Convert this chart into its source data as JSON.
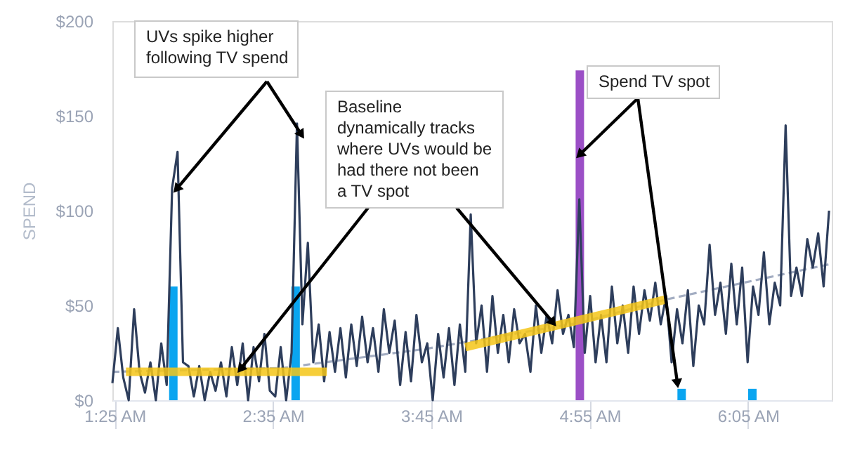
{
  "chart_data": {
    "type": "line",
    "ylabel": "SPEND",
    "xlim": [
      1.4,
      6.7
    ],
    "ylim": [
      0,
      200
    ],
    "xticks": [
      {
        "value": 1.4167,
        "label": "1:25 AM"
      },
      {
        "value": 2.5833,
        "label": "2:35 AM"
      },
      {
        "value": 3.75,
        "label": "3:45 AM"
      },
      {
        "value": 4.9167,
        "label": "4:55 AM"
      },
      {
        "value": 6.0833,
        "label": "6:05 AM"
      }
    ],
    "yticks": [
      {
        "value": 0,
        "label": "$0"
      },
      {
        "value": 50,
        "label": "$50"
      },
      {
        "value": 100,
        "label": "$100"
      },
      {
        "value": 150,
        "label": "$150"
      },
      {
        "value": 200,
        "label": "$200"
      }
    ],
    "grid": false,
    "series": [
      {
        "line_style": "dashed",
        "color": "#a3adc2",
        "x": [
          1.4,
          2.65,
          3.7,
          4.85,
          5.47,
          6.7
        ],
        "values": [
          15,
          17,
          27,
          41,
          53,
          72
        ]
      },
      {
        "type": "bar",
        "x": [
          1.849,
          2.75,
          4.844,
          5.594,
          6.115
        ],
        "values": [
          60,
          60,
          174,
          6,
          6
        ],
        "colors": [
          "#0aa5f0",
          "#0aa5f0",
          "#9b4fc6",
          "#0aa5f0",
          "#0aa5f0"
        ]
      },
      {
        "line_style": "solid",
        "color": "#2e3e5c",
        "x": [
          1.4,
          1.44,
          1.48,
          1.52,
          1.56,
          1.6,
          1.64,
          1.68,
          1.72,
          1.76,
          1.8,
          1.84,
          1.88,
          1.92,
          1.96,
          2.0,
          2.04,
          2.08,
          2.12,
          2.16,
          2.2,
          2.24,
          2.28,
          2.32,
          2.36,
          2.4,
          2.44,
          2.48,
          2.52,
          2.56,
          2.6,
          2.64,
          2.68,
          2.72,
          2.76,
          2.8,
          2.84,
          2.88,
          2.92,
          2.96,
          3.0,
          3.04,
          3.08,
          3.12,
          3.16,
          3.2,
          3.24,
          3.28,
          3.32,
          3.36,
          3.4,
          3.44,
          3.48,
          3.52,
          3.56,
          3.6,
          3.64,
          3.68,
          3.72,
          3.76,
          3.8,
          3.84,
          3.88,
          3.92,
          3.96,
          4.0,
          4.04,
          4.08,
          4.12,
          4.16,
          4.2,
          4.24,
          4.28,
          4.32,
          4.36,
          4.4,
          4.44,
          4.48,
          4.52,
          4.56,
          4.6,
          4.64,
          4.68,
          4.72,
          4.76,
          4.8,
          4.84,
          4.88,
          4.92,
          4.96,
          5.0,
          5.04,
          5.08,
          5.12,
          5.16,
          5.2,
          5.24,
          5.28,
          5.32,
          5.36,
          5.4,
          5.44,
          5.48,
          5.52,
          5.56,
          5.6,
          5.64,
          5.68,
          5.72,
          5.76,
          5.8,
          5.84,
          5.88,
          5.92,
          5.96,
          6.0,
          6.04,
          6.08,
          6.12,
          6.16,
          6.2,
          6.24,
          6.28,
          6.32,
          6.36,
          6.4,
          6.44,
          6.48,
          6.52,
          6.56,
          6.6,
          6.64,
          6.68
        ],
        "values": [
          9,
          38,
          12,
          0,
          48,
          15,
          4,
          20,
          0,
          30,
          8,
          112,
          131,
          20,
          18,
          2,
          18,
          0,
          15,
          5,
          20,
          2,
          28,
          8,
          30,
          0,
          28,
          10,
          35,
          5,
          2,
          28,
          0,
          25,
          146,
          40,
          83,
          20,
          40,
          10,
          36,
          15,
          38,
          12,
          40,
          18,
          44,
          20,
          38,
          15,
          48,
          25,
          42,
          8,
          36,
          10,
          45,
          20,
          30,
          0,
          35,
          12,
          38,
          8,
          40,
          15,
          98,
          30,
          50,
          15,
          55,
          25,
          45,
          20,
          48,
          30,
          35,
          15,
          50,
          25,
          45,
          30,
          58,
          35,
          45,
          28,
          106,
          25,
          55,
          20,
          45,
          20,
          60,
          30,
          50,
          25,
          60,
          35,
          58,
          42,
          62,
          40,
          55,
          20,
          48,
          30,
          58,
          18,
          50,
          40,
          82,
          45,
          62,
          35,
          72,
          40,
          70,
          20,
          60,
          45,
          78,
          40,
          62,
          50,
          145,
          55,
          70,
          55,
          85,
          70,
          88,
          60,
          100
        ]
      },
      {
        "line_style": "solid",
        "color": "#f5c518",
        "x": [
          1.5,
          2.98
        ],
        "values": [
          15,
          15
        ]
      },
      {
        "line_style": "solid",
        "color": "#f5c518",
        "x": [
          4.0,
          5.47
        ],
        "values": [
          28,
          53
        ]
      }
    ],
    "annotations": [
      {
        "text": "UVs spike higher\nfollowing TV spend",
        "x": 1.88,
        "y": 112
      },
      {
        "text": "Baseline\ndynamically tracks\nwhere UVs would be\nhad there not been\na TV spot",
        "x": 2.35,
        "y": 17
      },
      {
        "text": "Spend TV spot",
        "x": 4.85,
        "y": 130
      }
    ]
  }
}
